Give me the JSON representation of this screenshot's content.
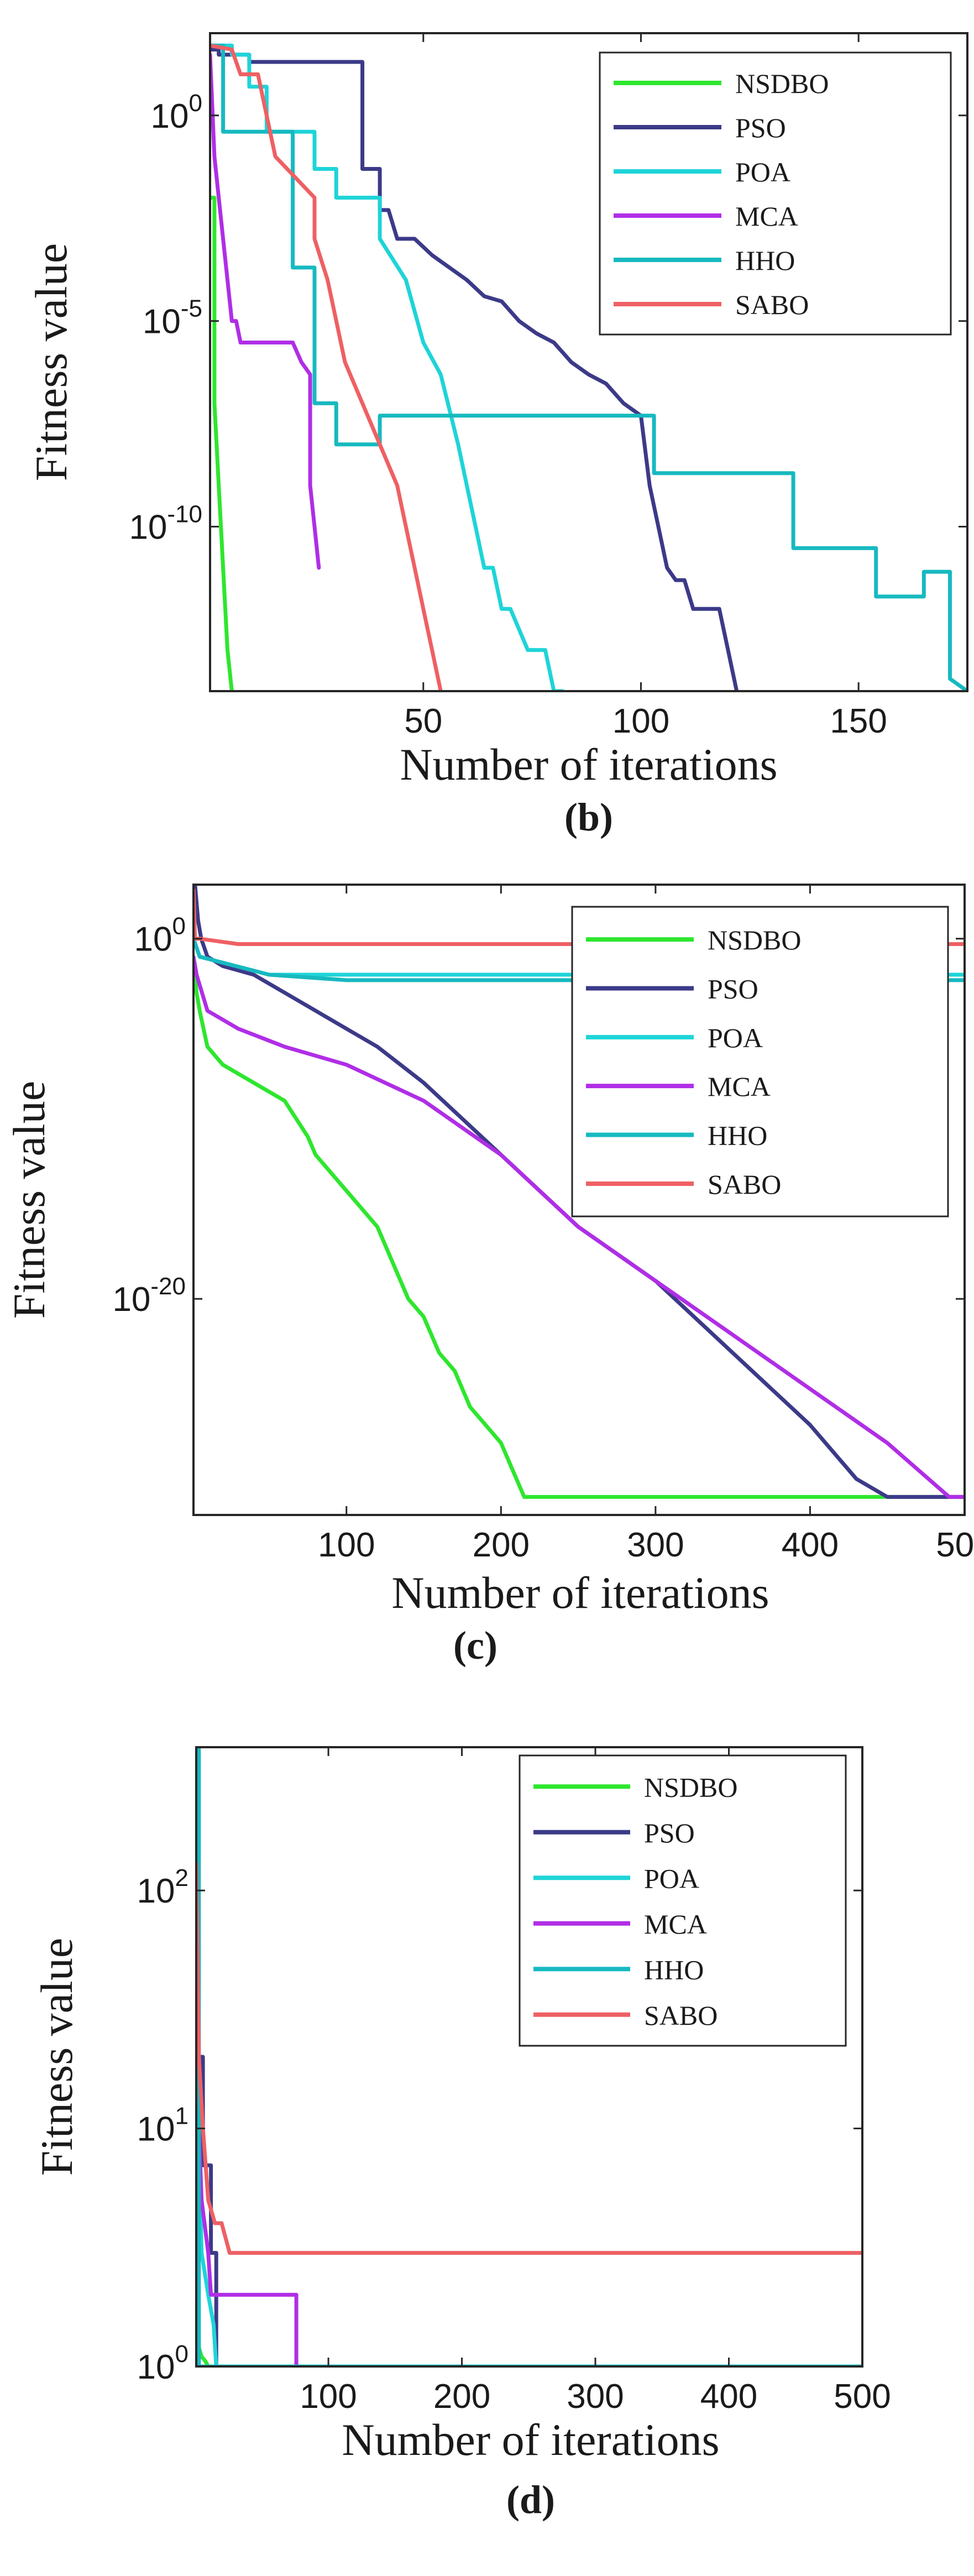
{
  "colors": {
    "NSDBO": "#2ee62e",
    "PSO": "#3c3a88",
    "POA": "#1ed4d8",
    "MCA": "#b02ee6",
    "HHO": "#17b9c0",
    "SABO": "#ee6064"
  },
  "chart_data": [
    {
      "type": "line",
      "panel_label": "b",
      "title": "",
      "xlabel": "Number of iterations",
      "ylabel": "Fitness value",
      "yscale": "log",
      "xlim": [
        1,
        175
      ],
      "ylim": [
        1e-14,
        100.0
      ],
      "xticks": [
        50,
        100,
        150
      ],
      "xtick_labels": [
        "50",
        "100",
        "150"
      ],
      "yticks": [
        1e-10,
        1e-05,
        1
      ],
      "ytick_labels": [
        {
          "base": "10",
          "exp": "-10"
        },
        {
          "base": "10",
          "exp": "-5"
        },
        {
          "base": "10",
          "exp": "0"
        }
      ],
      "legend": {
        "position": "top-right",
        "entries": [
          "NSDBO",
          "PSO",
          "POA",
          "MCA",
          "HHO",
          "SABO"
        ]
      },
      "series": [
        {
          "name": "NSDBO",
          "x": [
            1,
            2,
            2,
            3,
            4,
            5,
            6,
            6
          ],
          "y": [
            0.01,
            0.01,
            1e-07,
            1e-09,
            1e-11,
            1e-13,
            1e-14,
            1e-14
          ]
        },
        {
          "name": "PSO",
          "x": [
            1,
            3,
            3,
            10,
            10,
            36,
            36,
            40,
            40,
            42,
            44,
            48,
            52,
            56,
            60,
            64,
            68,
            72,
            76,
            80,
            84,
            88,
            92,
            96,
            100,
            102,
            104,
            106,
            108,
            110,
            112,
            114,
            116,
            118,
            120,
            122
          ],
          "y": [
            40,
            40,
            30,
            30,
            20,
            20,
            0.05,
            0.05,
            0.005,
            0.005,
            0.001,
            0.001,
            0.0004,
            0.0002,
            0.0001,
            4e-05,
            3e-05,
            1e-05,
            5e-06,
            3e-06,
            1e-06,
            5e-07,
            3e-07,
            1e-07,
            5e-08,
            1e-09,
            1e-10,
            1e-11,
            5e-12,
            5e-12,
            1e-12,
            1e-12,
            1e-12,
            1e-12,
            1e-13,
            1e-14
          ]
        },
        {
          "name": "POA",
          "x": [
            1,
            6,
            6,
            10,
            10,
            14,
            14,
            25,
            25,
            30,
            30,
            40,
            40,
            46,
            50,
            54,
            58,
            60,
            62,
            64,
            66,
            68,
            70,
            74,
            76,
            78,
            80,
            82
          ],
          "y": [
            50,
            50,
            30,
            30,
            5,
            5,
            0.4,
            0.4,
            0.05,
            0.05,
            0.01,
            0.01,
            0.001,
            0.0001,
            3e-06,
            5e-07,
            1e-08,
            1e-09,
            1e-10,
            1e-11,
            1e-11,
            1e-12,
            1e-12,
            1e-13,
            1e-13,
            1e-13,
            1e-14,
            1e-14
          ]
        },
        {
          "name": "MCA",
          "x": [
            1,
            2,
            3,
            4,
            5,
            6,
            7,
            8,
            10,
            20,
            22,
            24,
            24,
            25,
            26
          ],
          "y": [
            30,
            0.1,
            0.01,
            0.001,
            0.0001,
            1e-05,
            1e-05,
            3e-06,
            3e-06,
            3e-06,
            1e-06,
            5e-07,
            1e-09,
            1e-10,
            1e-11
          ]
        },
        {
          "name": "HHO",
          "x": [
            1,
            4,
            4,
            20,
            20,
            25,
            25,
            30,
            30,
            40,
            40,
            103,
            103,
            135,
            135,
            154,
            154,
            165,
            165,
            171,
            171,
            175
          ],
          "y": [
            50,
            50,
            0.4,
            0.4,
            0.0002,
            0.0002,
            1e-07,
            1e-07,
            1e-08,
            1e-08,
            5e-08,
            5e-08,
            2e-09,
            2e-09,
            3e-11,
            3e-11,
            2e-12,
            2e-12,
            8e-12,
            8e-12,
            2e-14,
            1e-14
          ]
        },
        {
          "name": "SABO",
          "x": [
            1,
            6,
            8,
            12,
            16,
            16,
            25,
            25,
            28,
            32,
            36,
            40,
            44,
            46,
            48,
            50,
            52,
            54
          ],
          "y": [
            50,
            40,
            10,
            10,
            0.1,
            0.1,
            0.01,
            0.001,
            0.0001,
            1e-06,
            1e-07,
            1e-08,
            1e-09,
            1e-10,
            1e-11,
            1e-12,
            1e-13,
            1e-14
          ]
        }
      ]
    },
    {
      "type": "line",
      "panel_label": "c",
      "title": "",
      "xlabel": "Number of iterations",
      "ylabel": "Fitness value",
      "yscale": "log",
      "xlim": [
        1,
        500
      ],
      "ylim": [
        1e-32,
        1000.0
      ],
      "xticks": [
        100,
        200,
        300,
        400,
        500
      ],
      "xtick_labels": [
        "100",
        "200",
        "300",
        "400",
        "500"
      ],
      "yticks": [
        1e-20,
        1
      ],
      "ytick_labels": [
        {
          "base": "10",
          "exp": "-20"
        },
        {
          "base": "10",
          "exp": "0"
        }
      ],
      "legend": {
        "position": "top-right",
        "entries": [
          "NSDBO",
          "PSO",
          "POA",
          "MCA",
          "HHO",
          "SABO"
        ]
      },
      "series": [
        {
          "name": "NSDBO",
          "x": [
            1,
            3,
            5,
            10,
            20,
            40,
            60,
            75,
            80,
            100,
            120,
            130,
            140,
            150,
            160,
            170,
            180,
            190,
            200,
            205,
            210,
            215,
            500
          ],
          "y": [
            0.1,
            0.001,
            0.0001,
            1e-06,
            1e-07,
            1e-08,
            1e-09,
            1e-11,
            1e-12,
            1e-14,
            1e-16,
            1e-18,
            1e-20,
            1e-21,
            1e-23,
            1e-24,
            1e-26,
            1e-27,
            1e-28,
            1e-29,
            1e-30,
            1e-31,
            1e-31
          ]
        },
        {
          "name": "PSO",
          "x": [
            1,
            2,
            4,
            6,
            10,
            20,
            40,
            60,
            80,
            100,
            120,
            150,
            200,
            250,
            300,
            350,
            400,
            430,
            450,
            500
          ],
          "y": [
            100,
            1000,
            10,
            1,
            0.1,
            0.03,
            0.01,
            0.001,
            0.0001,
            1e-05,
            1e-06,
            1e-08,
            1e-12,
            1e-16,
            1e-19,
            1e-23,
            1e-27,
            1e-30,
            1e-31,
            1e-31
          ]
        },
        {
          "name": "POA",
          "x": [
            1,
            5,
            50,
            200,
            500
          ],
          "y": [
            1,
            0.1,
            0.01,
            0.01,
            0.01
          ]
        },
        {
          "name": "MCA",
          "x": [
            1,
            3,
            10,
            30,
            60,
            100,
            150,
            200,
            250,
            300,
            350,
            400,
            450,
            490,
            500
          ],
          "y": [
            0.1,
            0.01,
            0.0001,
            1e-05,
            1e-06,
            1e-07,
            1e-09,
            1e-12,
            1e-16,
            1e-19,
            1e-22,
            1e-25,
            1e-28,
            1e-31,
            1e-31
          ]
        },
        {
          "name": "HHO",
          "x": [
            1,
            5,
            50,
            100,
            500
          ],
          "y": [
            1,
            0.1,
            0.01,
            0.005,
            0.005
          ]
        },
        {
          "name": "SABO",
          "x": [
            1,
            2,
            5,
            30,
            100,
            500
          ],
          "y": [
            500,
            1,
            1,
            0.5,
            0.5,
            0.5
          ]
        }
      ]
    },
    {
      "type": "line",
      "panel_label": "d",
      "title": "",
      "xlabel": "Number of iterations",
      "ylabel": "Fitness value",
      "yscale": "log",
      "xlim": [
        1,
        500
      ],
      "ylim": [
        1,
        400
      ],
      "xticks": [
        100,
        200,
        300,
        400,
        500
      ],
      "xtick_labels": [
        "100",
        "200",
        "300",
        "400",
        "500"
      ],
      "yticks": [
        1,
        10,
        100
      ],
      "ytick_labels": [
        {
          "base": "10",
          "exp": "0"
        },
        {
          "base": "10",
          "exp": "1"
        },
        {
          "base": "10",
          "exp": "2"
        }
      ],
      "legend": {
        "position": "top-right",
        "entries": [
          "NSDBO",
          "PSO",
          "POA",
          "MCA",
          "HHO",
          "SABO"
        ]
      },
      "series": [
        {
          "name": "NSDBO",
          "x": [
            1,
            2,
            3,
            5,
            8,
            10,
            500
          ],
          "y": [
            50,
            5,
            1.2,
            1.1,
            1.05,
            1,
            1
          ]
        },
        {
          "name": "PSO",
          "x": [
            1,
            6,
            6,
            12,
            12,
            16,
            16,
            500
          ],
          "y": [
            20,
            20,
            7,
            7,
            3,
            3,
            1,
            1
          ]
        },
        {
          "name": "POA",
          "x": [
            1,
            2,
            3,
            5,
            10,
            14,
            16,
            500
          ],
          "y": [
            400,
            100,
            10,
            3,
            2,
            1.5,
            1,
            1
          ]
        },
        {
          "name": "MCA",
          "x": [
            1,
            5,
            10,
            12,
            16,
            76,
            76,
            500
          ],
          "y": [
            20,
            5,
            3,
            2,
            2,
            2,
            1,
            1
          ]
        },
        {
          "name": "HHO",
          "x": [
            1,
            3,
            3,
            500
          ],
          "y": [
            400,
            400,
            1,
            1
          ]
        },
        {
          "name": "SABO",
          "x": [
            1,
            3,
            6,
            10,
            15,
            20,
            26,
            500
          ],
          "y": [
            130,
            20,
            10,
            5,
            4,
            4,
            3,
            3
          ]
        }
      ]
    }
  ]
}
